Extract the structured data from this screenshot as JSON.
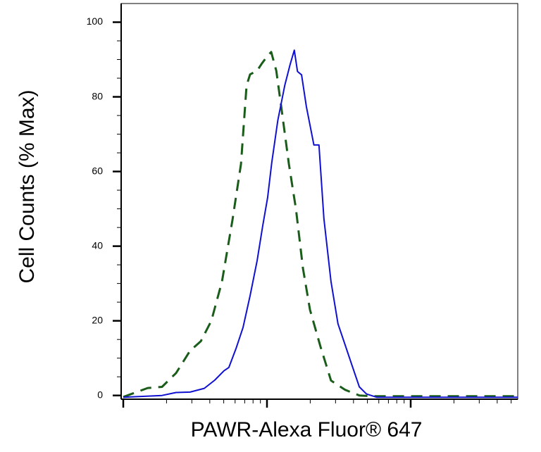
{
  "chart_data": {
    "type": "line",
    "xlabel": "PAWR-Alexa Fluor® 647",
    "ylabel": "Cell Counts (% Max)",
    "xscale": "log",
    "xlim": [
      1,
      556
    ],
    "ylim": [
      -1,
      105
    ],
    "yticks": [
      0,
      20,
      40,
      60,
      80,
      100
    ],
    "series": [
      {
        "color": "#1a5c1a",
        "dash": true,
        "x": [
          1,
          1.48,
          1.86,
          2.33,
          2.92,
          3.46,
          4.1,
          4.86,
          5.75,
          6.59,
          7.21,
          7.63,
          8.54,
          9.24,
          10.1,
          10.7,
          11.6,
          12.7,
          14.2,
          15.9,
          17.8,
          19.9,
          23.6,
          27.9,
          35,
          43.9,
          55,
          556
        ],
        "values": [
          -0.4,
          2,
          2.3,
          6,
          12,
          14.5,
          20,
          30.5,
          47,
          62,
          83,
          86,
          87,
          89,
          91,
          92,
          87,
          76,
          62,
          50,
          34,
          23,
          13,
          4,
          1.5,
          0,
          -0.2,
          -0.2
        ]
      },
      {
        "color": "#1010d0",
        "dash": false,
        "x": [
          1,
          1.86,
          2.33,
          2.92,
          3.66,
          4.33,
          5.02,
          5.43,
          6.09,
          6.81,
          7.63,
          8.54,
          9.34,
          10.1,
          10.8,
          11.9,
          13.3,
          14.5,
          15.5,
          16.3,
          17.4,
          18.8,
          21.2,
          23,
          24.9,
          27.9,
          31.2,
          35,
          39.2,
          43.9,
          49.2,
          58.2,
          556
        ],
        "values": [
          -0.5,
          0,
          0.8,
          0.9,
          1.9,
          4.1,
          6.6,
          7.5,
          12.6,
          18.2,
          26.7,
          36.1,
          45.5,
          53,
          62.4,
          73.7,
          83.1,
          88.7,
          92.5,
          86.8,
          85.9,
          77.4,
          67.1,
          67.1,
          47.4,
          30.5,
          19.2,
          13.5,
          7.9,
          2.3,
          0.4,
          -0.5,
          -0.5
        ]
      }
    ]
  }
}
